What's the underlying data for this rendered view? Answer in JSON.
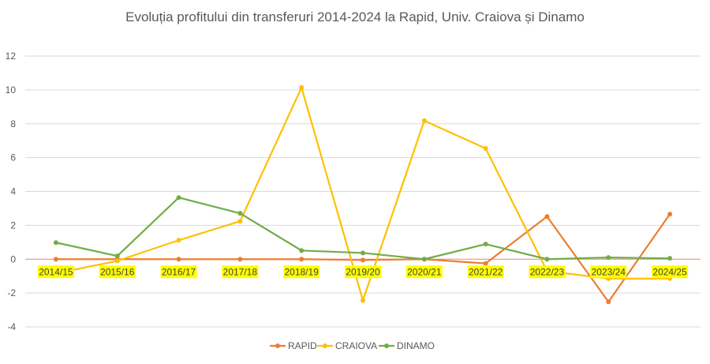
{
  "chart_data": {
    "type": "line",
    "title": "Evoluția profitului din transferuri 2014-2024 la Rapid, Univ. Craiova și Dinamo",
    "xlabel": "",
    "ylabel": "",
    "ylim": [
      -4,
      12
    ],
    "yticks": [
      -4,
      -2,
      0,
      2,
      4,
      6,
      8,
      10,
      12
    ],
    "grid": true,
    "legend": "bottom",
    "categories": [
      "2014/15",
      "2015/16",
      "2016/17",
      "2017/18",
      "2018/19",
      "2019/20",
      "2020/21",
      "2021/22",
      "2022/23",
      "2023/24",
      "2024/25"
    ],
    "series": [
      {
        "name": "RAPID",
        "color": "#ED7D31",
        "values": [
          0,
          0,
          0,
          0,
          0,
          -0.05,
          0,
          -0.25,
          2.52,
          -2.52,
          2.66
        ]
      },
      {
        "name": "CRAIOVA",
        "color": "#FFC000",
        "values": [
          -0.84,
          -0.1,
          1.12,
          2.24,
          10.14,
          -2.43,
          8.18,
          6.54,
          -0.7,
          -1.15,
          -1.15
        ]
      },
      {
        "name": "DINAMO",
        "color": "#70AD47",
        "values": [
          0.98,
          0.19,
          3.64,
          2.71,
          0.51,
          0.37,
          0,
          0.89,
          0,
          0.1,
          0.05
        ]
      }
    ]
  }
}
